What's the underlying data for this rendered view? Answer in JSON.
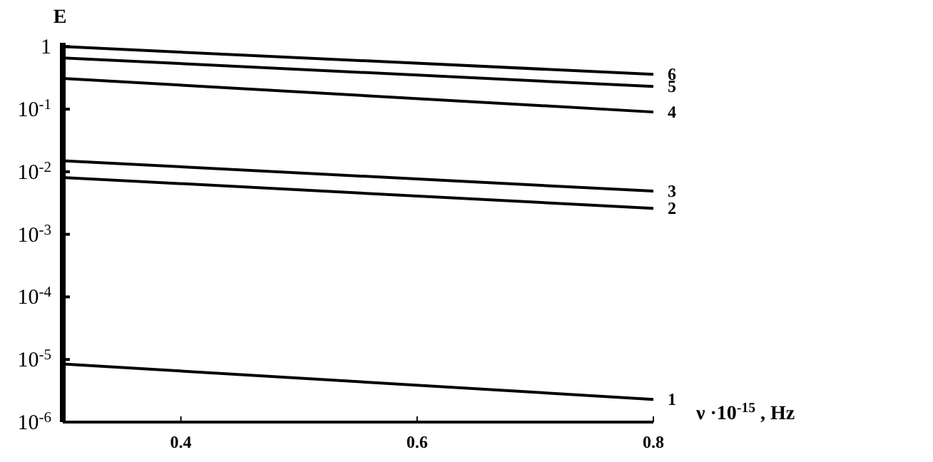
{
  "chart_data": {
    "type": "line",
    "xlabel": "ν ·10$^{-15}$ , Hz",
    "ylabel": "E",
    "log": "y",
    "grid": false,
    "marker": "none",
    "line_style": "solid",
    "x": [
      0.3,
      0.8
    ],
    "xlim": [
      0.3,
      0.8
    ],
    "xticks": [
      0.4,
      0.6,
      0.8
    ],
    "ylim": [
      1e-06,
      1.15
    ],
    "yticks": [
      {
        "value": 1e-06,
        "label": "10$^{-6}$"
      },
      {
        "value": 1e-05,
        "label": "10$^{-5}$"
      },
      {
        "value": 0.0001,
        "label": "10$^{-4}$"
      },
      {
        "value": 0.001,
        "label": "10$^{-3}$"
      },
      {
        "value": 0.01,
        "label": "10$^{-2}$"
      },
      {
        "value": 0.1,
        "label": "10$^{-1}$"
      },
      1
    ],
    "series": [
      {
        "name": "1",
        "color": "#000000",
        "values": [
          8.5e-06,
          2.3e-06
        ]
      },
      {
        "name": "2",
        "color": "#000000",
        "values": [
          0.0081,
          0.0026
        ]
      },
      {
        "name": "3",
        "color": "#000000",
        "values": [
          0.015,
          0.0049
        ]
      },
      {
        "name": "4",
        "color": "#000000",
        "values": [
          0.31,
          0.09
        ]
      },
      {
        "name": "5",
        "color": "#000000",
        "values": [
          0.66,
          0.23
        ]
      },
      {
        "name": "6",
        "color": "#000000",
        "values": [
          1.0,
          0.36
        ]
      }
    ]
  }
}
